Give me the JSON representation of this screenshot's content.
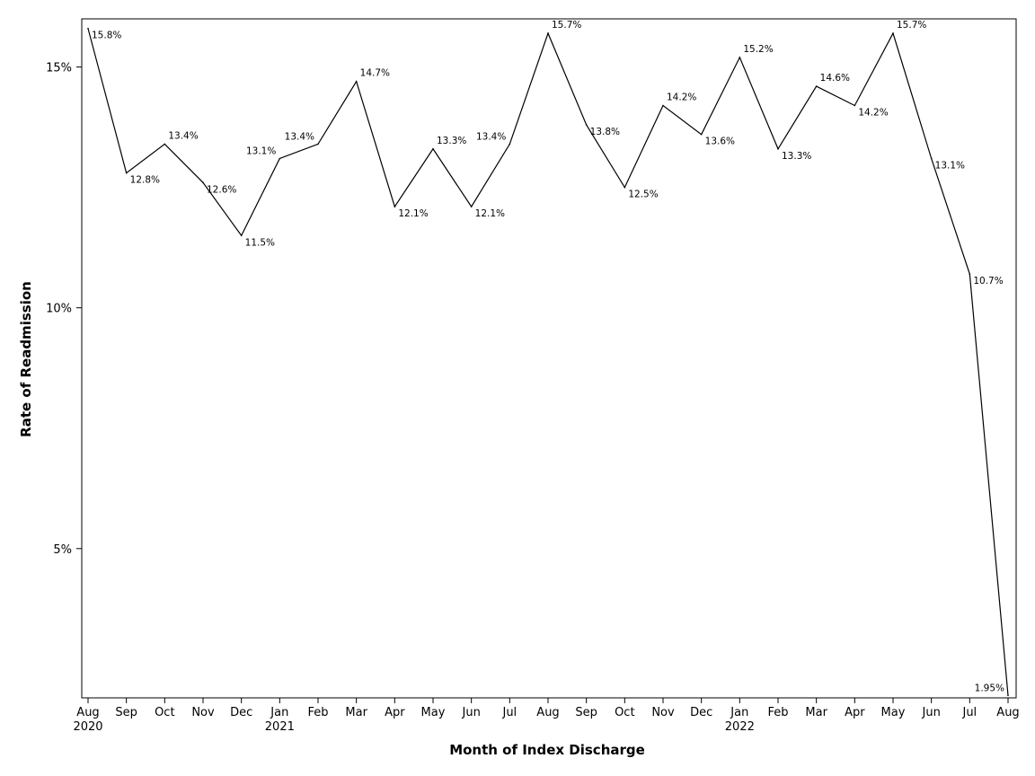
{
  "chart_data": {
    "type": "line",
    "xlabel": "Month of Index Discharge",
    "ylabel": "Rate of Readmission",
    "ylim": [
      1.9,
      16.0
    ],
    "y_ticks": [
      {
        "value": 5,
        "label": "5%"
      },
      {
        "value": 10,
        "label": "10%"
      },
      {
        "value": 15,
        "label": "15%"
      }
    ],
    "grid": false,
    "legend": "none",
    "line_color": "#000000",
    "points": [
      {
        "month": "Aug",
        "year": "2020",
        "value": 15.8,
        "label": "15.8%"
      },
      {
        "month": "Sep",
        "year": "",
        "value": 12.8,
        "label": "12.8%"
      },
      {
        "month": "Oct",
        "year": "",
        "value": 13.4,
        "label": "13.4%"
      },
      {
        "month": "Nov",
        "year": "",
        "value": 12.6,
        "label": "12.6%"
      },
      {
        "month": "Dec",
        "year": "",
        "value": 11.5,
        "label": "11.5%"
      },
      {
        "month": "Jan",
        "year": "2021",
        "value": 13.1,
        "label": "13.1%"
      },
      {
        "month": "Feb",
        "year": "",
        "value": 13.4,
        "label": "13.4%"
      },
      {
        "month": "Mar",
        "year": "",
        "value": 14.7,
        "label": "14.7%"
      },
      {
        "month": "Apr",
        "year": "",
        "value": 12.1,
        "label": "12.1%"
      },
      {
        "month": "May",
        "year": "",
        "value": 13.3,
        "label": "13.3%"
      },
      {
        "month": "Jun",
        "year": "",
        "value": 12.1,
        "label": "12.1%"
      },
      {
        "month": "Jul",
        "year": "",
        "value": 13.4,
        "label": "13.4%"
      },
      {
        "month": "Aug",
        "year": "",
        "value": 15.7,
        "label": "15.7%"
      },
      {
        "month": "Sep",
        "year": "",
        "value": 13.8,
        "label": "13.8%"
      },
      {
        "month": "Oct",
        "year": "",
        "value": 12.5,
        "label": "12.5%"
      },
      {
        "month": "Nov",
        "year": "",
        "value": 14.2,
        "label": "14.2%"
      },
      {
        "month": "Dec",
        "year": "",
        "value": 13.6,
        "label": "13.6%"
      },
      {
        "month": "Jan",
        "year": "2022",
        "value": 15.2,
        "label": "15.2%"
      },
      {
        "month": "Feb",
        "year": "",
        "value": 13.3,
        "label": "13.3%"
      },
      {
        "month": "Mar",
        "year": "",
        "value": 14.6,
        "label": "14.6%"
      },
      {
        "month": "Apr",
        "year": "",
        "value": 14.2,
        "label": "14.2%"
      },
      {
        "month": "May",
        "year": "",
        "value": 15.7,
        "label": "15.7%"
      },
      {
        "month": "Jun",
        "year": "",
        "value": 13.1,
        "label": "13.1%"
      },
      {
        "month": "Jul",
        "year": "",
        "value": 10.7,
        "label": "10.7%"
      },
      {
        "month": "Aug",
        "year": "",
        "value": 1.95,
        "label": "1.95%"
      }
    ]
  }
}
